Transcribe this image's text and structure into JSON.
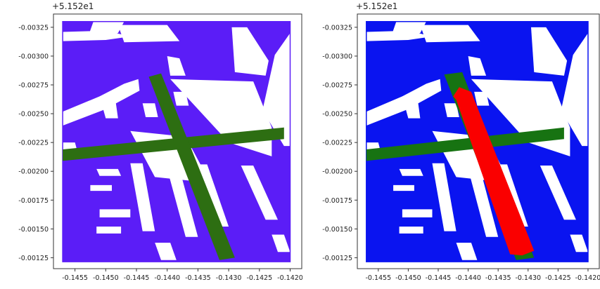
{
  "chart_data": [
    {
      "type": "map",
      "offset_text": "+5.152e1",
      "xlim": [
        -0.14585,
        -0.1418
      ],
      "ylim": [
        -0.001155,
        -0.003365
      ],
      "xticks": [
        -0.1455,
        -0.145,
        -0.1445,
        -0.144,
        -0.1435,
        -0.143,
        -0.1425,
        -0.142
      ],
      "xtick_labels": [
        "-0.1455",
        "-0.1450",
        "-0.1445",
        "-0.1440",
        "-0.1435",
        "-0.1430",
        "-0.1425",
        "-0.1420"
      ],
      "yticks": [
        -0.00325,
        -0.003,
        -0.00275,
        -0.0025,
        -0.00225,
        -0.002,
        -0.00175,
        -0.0015,
        -0.00125
      ],
      "ytick_labels": [
        "-0.00325",
        "-0.00300",
        "-0.00275",
        "-0.00250",
        "-0.00225",
        "-0.00200",
        "-0.00175",
        "-0.00150",
        "-0.00125"
      ],
      "area_color": "#5b1df7",
      "boundary": [
        [
          -0.1457,
          -0.0033
        ],
        [
          -0.142,
          -0.0033
        ],
        [
          -0.142,
          -0.001215
        ],
        [
          -0.1457,
          -0.001215
        ]
      ],
      "cut_color": "#ffffff",
      "cuts": [
        [
          [
            -0.14578,
            -0.00238
          ],
          [
            -0.14505,
            -0.00253
          ],
          [
            -0.1448,
            -0.0026
          ],
          [
            -0.14445,
            -0.0027
          ],
          [
            -0.14447,
            -0.0028
          ],
          [
            -0.1447,
            -0.00276
          ],
          [
            -0.1451,
            -0.00265
          ],
          [
            -0.14578,
            -0.0025
          ]
        ],
        [
          [
            -0.1446,
            -0.00235
          ],
          [
            -0.1437,
            -0.0023
          ],
          [
            -0.1433,
            -0.0019
          ],
          [
            -0.1442,
            -0.00195
          ]
        ],
        [
          [
            -0.14395,
            -0.0028
          ],
          [
            -0.1426,
            -0.00278
          ],
          [
            -0.1423,
            -0.00238
          ],
          [
            -0.1423,
            -0.00213
          ],
          [
            -0.143,
            -0.00225
          ]
        ],
        [
          [
            -0.1452,
            -0.0033
          ],
          [
            -0.1447,
            -0.0033
          ],
          [
            -0.1448,
            -0.0032
          ],
          [
            -0.1453,
            -0.00315
          ]
        ],
        [
          [
            -0.142,
            -0.0032
          ],
          [
            -0.14225,
            -0.00301
          ],
          [
            -0.14245,
            -0.00253
          ],
          [
            -0.1421,
            -0.00222
          ],
          [
            -0.142,
            -0.00222
          ]
        ],
        [
          [
            -0.1448,
            -0.00327
          ],
          [
            -0.144,
            -0.00327
          ],
          [
            -0.1438,
            -0.00313
          ],
          [
            -0.1447,
            -0.00312
          ]
        ],
        [
          [
            -0.1457,
            -0.00321
          ],
          [
            -0.145,
            -0.00322
          ],
          [
            -0.1446,
            -0.00317
          ],
          [
            -0.145,
            -0.00314
          ],
          [
            -0.1457,
            -0.00313
          ]
        ],
        [
          [
            -0.144,
            -0.003
          ],
          [
            -0.1438,
            -0.00298
          ],
          [
            -0.1437,
            -0.00283
          ],
          [
            -0.14395,
            -0.00283
          ]
        ],
        [
          [
            -0.14295,
            -0.00325
          ],
          [
            -0.1427,
            -0.00325
          ],
          [
            -0.14235,
            -0.00296
          ],
          [
            -0.1424,
            -0.00283
          ],
          [
            -0.1429,
            -0.00286
          ]
        ],
        [
          [
            -0.1451,
            -0.00265
          ],
          [
            -0.14485,
            -0.00265
          ],
          [
            -0.1448,
            -0.00246
          ],
          [
            -0.145,
            -0.00246
          ]
        ],
        [
          [
            -0.1444,
            -0.00259
          ],
          [
            -0.1442,
            -0.00259
          ],
          [
            -0.14415,
            -0.00247
          ],
          [
            -0.14435,
            -0.00247
          ]
        ],
        [
          [
            -0.1439,
            -0.00269
          ],
          [
            -0.1437,
            -0.00269
          ],
          [
            -0.14365,
            -0.00257
          ],
          [
            -0.14385,
            -0.00257
          ]
        ],
        [
          [
            -0.14515,
            -0.00202
          ],
          [
            -0.1448,
            -0.00202
          ],
          [
            -0.14475,
            -0.00196
          ],
          [
            -0.1451,
            -0.00196
          ]
        ],
        [
          [
            -0.14525,
            -0.00188
          ],
          [
            -0.1449,
            -0.00188
          ],
          [
            -0.1449,
            -0.00183
          ],
          [
            -0.14525,
            -0.00183
          ]
        ],
        [
          [
            -0.1446,
            -0.00207
          ],
          [
            -0.1444,
            -0.00207
          ],
          [
            -0.1442,
            -0.00148
          ],
          [
            -0.1444,
            -0.00148
          ]
        ],
        [
          [
            -0.144,
            -0.00202
          ],
          [
            -0.1438,
            -0.00202
          ],
          [
            -0.1435,
            -0.00143
          ],
          [
            -0.1437,
            -0.00143
          ]
        ],
        [
          [
            -0.14355,
            -0.00206
          ],
          [
            -0.14335,
            -0.00206
          ],
          [
            -0.143,
            -0.00152
          ],
          [
            -0.1432,
            -0.00152
          ]
        ],
        [
          [
            -0.1451,
            -0.00167
          ],
          [
            -0.1446,
            -0.00167
          ],
          [
            -0.1446,
            -0.0016
          ],
          [
            -0.1451,
            -0.0016
          ]
        ],
        [
          [
            -0.14515,
            -0.00152
          ],
          [
            -0.14475,
            -0.00152
          ],
          [
            -0.14475,
            -0.00146
          ],
          [
            -0.14515,
            -0.00146
          ]
        ],
        [
          [
            -0.1428,
            -0.00205
          ],
          [
            -0.1426,
            -0.00205
          ],
          [
            -0.1422,
            -0.00158
          ],
          [
            -0.1424,
            -0.00158
          ]
        ],
        [
          [
            -0.1457,
            -0.00225
          ],
          [
            -0.1455,
            -0.00225
          ],
          [
            -0.14545,
            -0.00215
          ],
          [
            -0.1457,
            -0.00215
          ]
        ],
        [
          [
            -0.1442,
            -0.00138
          ],
          [
            -0.14395,
            -0.00138
          ],
          [
            -0.14385,
            -0.00123
          ],
          [
            -0.1441,
            -0.00123
          ]
        ],
        [
          [
            -0.1423,
            -0.00145
          ],
          [
            -0.1421,
            -0.00145
          ],
          [
            -0.142,
            -0.0013
          ],
          [
            -0.1422,
            -0.0013
          ]
        ]
      ],
      "strips_color": "#2d6e12",
      "strips": [
        [
          [
            -0.1457,
            -0.00219
          ],
          [
            -0.1421,
            -0.00238
          ],
          [
            -0.1421,
            -0.00228
          ],
          [
            -0.1457,
            -0.00209
          ]
        ],
        [
          [
            -0.1443,
            -0.00282
          ],
          [
            -0.1441,
            -0.00285
          ],
          [
            -0.1429,
            -0.00125
          ],
          [
            -0.14315,
            -0.00123
          ]
        ]
      ],
      "path_color": null,
      "path": []
    },
    {
      "type": "map",
      "offset_text": "+5.152e1",
      "xlim": [
        -0.14585,
        -0.1418
      ],
      "ylim": [
        -0.001155,
        -0.003365
      ],
      "xticks": [
        -0.1455,
        -0.145,
        -0.1445,
        -0.144,
        -0.1435,
        -0.143,
        -0.1425,
        -0.142
      ],
      "xtick_labels": [
        "-0.1455",
        "-0.1450",
        "-0.1445",
        "-0.1440",
        "-0.1435",
        "-0.1430",
        "-0.1425",
        "-0.1420"
      ],
      "yticks": [
        -0.00325,
        -0.003,
        -0.00275,
        -0.0025,
        -0.00225,
        -0.002,
        -0.00175,
        -0.0015,
        -0.00125
      ],
      "ytick_labels": [
        "-0.00325",
        "-0.00300",
        "-0.00275",
        "-0.00250",
        "-0.00225",
        "-0.00200",
        "-0.00175",
        "-0.00150",
        "-0.00125"
      ],
      "area_color": "#0a14f0",
      "boundary": [
        [
          -0.1457,
          -0.0033
        ],
        [
          -0.142,
          -0.0033
        ],
        [
          -0.142,
          -0.001215
        ],
        [
          -0.1457,
          -0.001215
        ]
      ],
      "cut_color": "#ffffff",
      "cuts": [
        [
          [
            -0.14578,
            -0.00238
          ],
          [
            -0.14505,
            -0.00253
          ],
          [
            -0.1448,
            -0.0026
          ],
          [
            -0.14445,
            -0.0027
          ],
          [
            -0.14447,
            -0.0028
          ],
          [
            -0.1447,
            -0.00276
          ],
          [
            -0.1451,
            -0.00265
          ],
          [
            -0.14578,
            -0.0025
          ]
        ],
        [
          [
            -0.1446,
            -0.00235
          ],
          [
            -0.1437,
            -0.0023
          ],
          [
            -0.1433,
            -0.0019
          ],
          [
            -0.1442,
            -0.00195
          ]
        ],
        [
          [
            -0.14395,
            -0.0028
          ],
          [
            -0.1426,
            -0.00278
          ],
          [
            -0.1423,
            -0.00238
          ],
          [
            -0.1423,
            -0.00213
          ],
          [
            -0.143,
            -0.00225
          ]
        ],
        [
          [
            -0.1452,
            -0.0033
          ],
          [
            -0.1447,
            -0.0033
          ],
          [
            -0.1448,
            -0.0032
          ],
          [
            -0.1453,
            -0.00315
          ]
        ],
        [
          [
            -0.142,
            -0.0032
          ],
          [
            -0.14225,
            -0.00301
          ],
          [
            -0.14245,
            -0.00253
          ],
          [
            -0.1421,
            -0.00222
          ],
          [
            -0.142,
            -0.00222
          ]
        ],
        [
          [
            -0.1448,
            -0.00327
          ],
          [
            -0.144,
            -0.00327
          ],
          [
            -0.1438,
            -0.00313
          ],
          [
            -0.1447,
            -0.00312
          ]
        ],
        [
          [
            -0.1457,
            -0.00321
          ],
          [
            -0.145,
            -0.00322
          ],
          [
            -0.1446,
            -0.00317
          ],
          [
            -0.145,
            -0.00314
          ],
          [
            -0.1457,
            -0.00313
          ]
        ],
        [
          [
            -0.144,
            -0.003
          ],
          [
            -0.1438,
            -0.00298
          ],
          [
            -0.1437,
            -0.00283
          ],
          [
            -0.14395,
            -0.00283
          ]
        ],
        [
          [
            -0.14295,
            -0.00325
          ],
          [
            -0.1427,
            -0.00325
          ],
          [
            -0.14235,
            -0.00296
          ],
          [
            -0.1424,
            -0.00283
          ],
          [
            -0.1429,
            -0.00286
          ]
        ],
        [
          [
            -0.1451,
            -0.00265
          ],
          [
            -0.14485,
            -0.00265
          ],
          [
            -0.1448,
            -0.00246
          ],
          [
            -0.145,
            -0.00246
          ]
        ],
        [
          [
            -0.1444,
            -0.00259
          ],
          [
            -0.1442,
            -0.00259
          ],
          [
            -0.14415,
            -0.00247
          ],
          [
            -0.14435,
            -0.00247
          ]
        ],
        [
          [
            -0.1439,
            -0.00269
          ],
          [
            -0.1437,
            -0.00269
          ],
          [
            -0.14365,
            -0.00257
          ],
          [
            -0.14385,
            -0.00257
          ]
        ],
        [
          [
            -0.14515,
            -0.00202
          ],
          [
            -0.1448,
            -0.00202
          ],
          [
            -0.14475,
            -0.00196
          ],
          [
            -0.1451,
            -0.00196
          ]
        ],
        [
          [
            -0.14525,
            -0.00188
          ],
          [
            -0.1449,
            -0.00188
          ],
          [
            -0.1449,
            -0.00183
          ],
          [
            -0.14525,
            -0.00183
          ]
        ],
        [
          [
            -0.1446,
            -0.00207
          ],
          [
            -0.1444,
            -0.00207
          ],
          [
            -0.1442,
            -0.00148
          ],
          [
            -0.1444,
            -0.00148
          ]
        ],
        [
          [
            -0.144,
            -0.00202
          ],
          [
            -0.1438,
            -0.00202
          ],
          [
            -0.1435,
            -0.00143
          ],
          [
            -0.1437,
            -0.00143
          ]
        ],
        [
          [
            -0.14355,
            -0.00206
          ],
          [
            -0.14335,
            -0.00206
          ],
          [
            -0.143,
            -0.00152
          ],
          [
            -0.1432,
            -0.00152
          ]
        ],
        [
          [
            -0.1451,
            -0.00167
          ],
          [
            -0.1446,
            -0.00167
          ],
          [
            -0.1446,
            -0.0016
          ],
          [
            -0.1451,
            -0.0016
          ]
        ],
        [
          [
            -0.14515,
            -0.00152
          ],
          [
            -0.14475,
            -0.00152
          ],
          [
            -0.14475,
            -0.00146
          ],
          [
            -0.14515,
            -0.00146
          ]
        ],
        [
          [
            -0.1428,
            -0.00205
          ],
          [
            -0.1426,
            -0.00205
          ],
          [
            -0.1422,
            -0.00158
          ],
          [
            -0.1424,
            -0.00158
          ]
        ],
        [
          [
            -0.1457,
            -0.00225
          ],
          [
            -0.1455,
            -0.00225
          ],
          [
            -0.14545,
            -0.00215
          ],
          [
            -0.1457,
            -0.00215
          ]
        ],
        [
          [
            -0.1442,
            -0.00138
          ],
          [
            -0.14395,
            -0.00138
          ],
          [
            -0.14385,
            -0.00123
          ],
          [
            -0.1441,
            -0.00123
          ]
        ],
        [
          [
            -0.1423,
            -0.00145
          ],
          [
            -0.1421,
            -0.00145
          ],
          [
            -0.142,
            -0.0013
          ],
          [
            -0.1422,
            -0.0013
          ]
        ]
      ],
      "strips_color": "#177312",
      "strips": [
        [
          [
            -0.1457,
            -0.00219
          ],
          [
            -0.1424,
            -0.00238
          ],
          [
            -0.1424,
            -0.00228
          ],
          [
            -0.1457,
            -0.00209
          ]
        ],
        [
          [
            -0.1444,
            -0.00284
          ],
          [
            -0.1441,
            -0.00286
          ],
          [
            -0.1429,
            -0.00125
          ],
          [
            -0.1432,
            -0.00123
          ]
        ]
      ],
      "path_color": "#fa0000",
      "path": [
        [
          -0.14425,
          -0.00265
        ],
        [
          -0.14415,
          -0.00273
        ],
        [
          -0.14395,
          -0.00269
        ],
        [
          -0.1429,
          -0.00131
        ],
        [
          -0.1431,
          -0.00127
        ],
        [
          -0.1433,
          -0.00128
        ],
        [
          -0.1442,
          -0.00262
        ]
      ]
    }
  ]
}
